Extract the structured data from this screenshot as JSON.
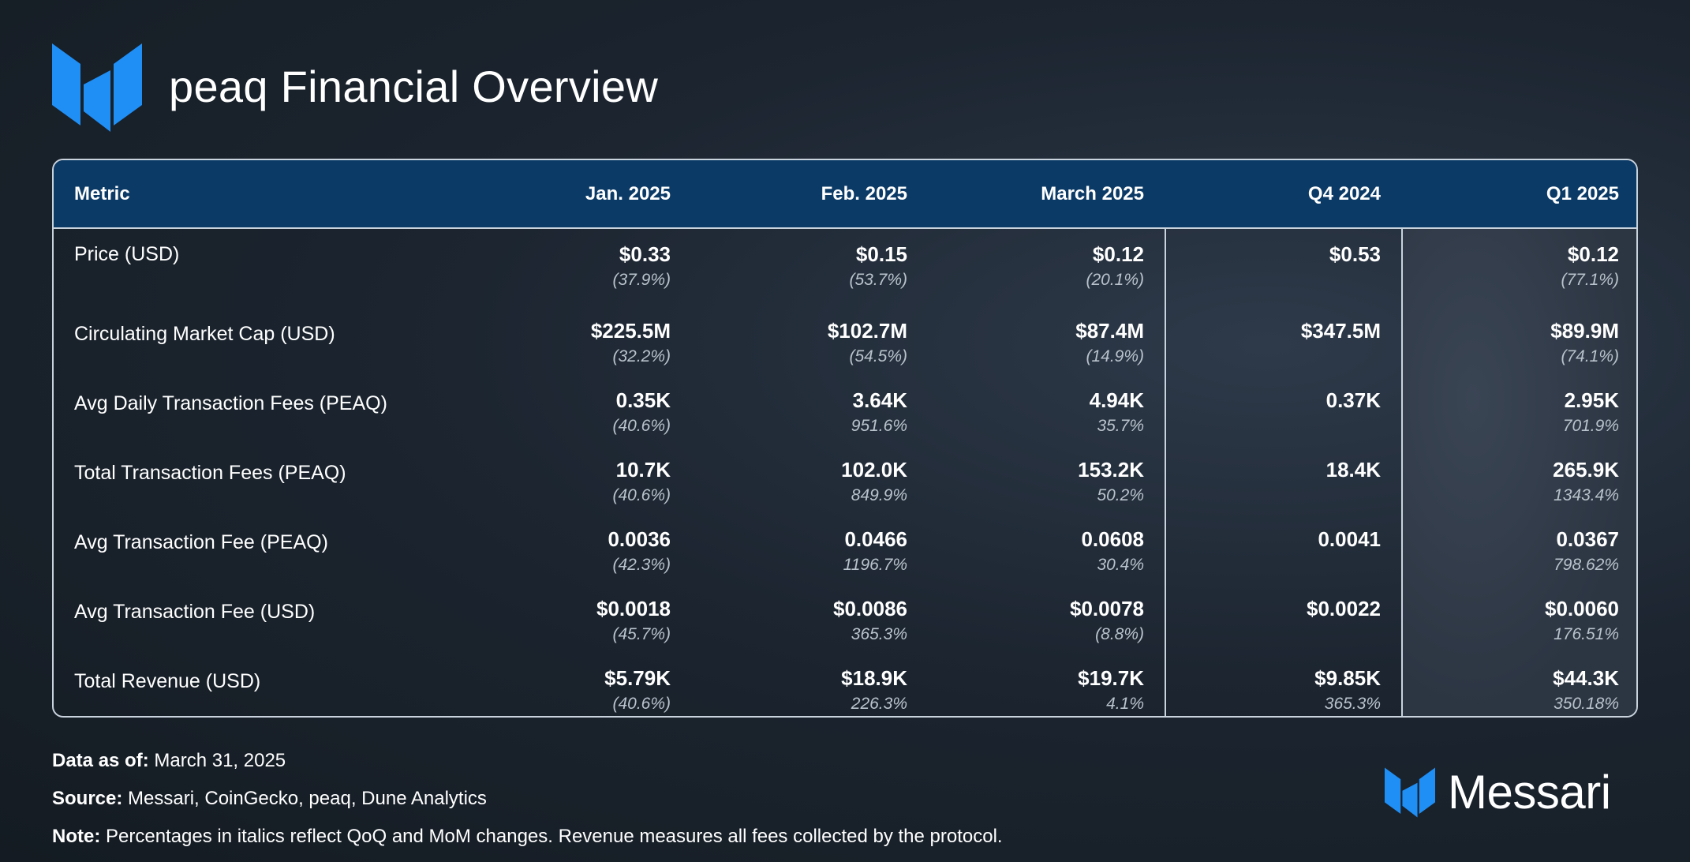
{
  "title": "peaq Financial Overview",
  "chart_data": {
    "type": "table",
    "columns": [
      "Metric",
      "Jan. 2025",
      "Feb. 2025",
      "March 2025",
      "Q4 2024",
      "Q1 2025"
    ],
    "rows": [
      {
        "metric": "Price (USD)",
        "cells": [
          {
            "value": "$0.33",
            "change": "(37.9%)"
          },
          {
            "value": "$0.15",
            "change": "(53.7%)"
          },
          {
            "value": "$0.12",
            "change": "(20.1%)"
          },
          {
            "value": "$0.53",
            "change": ""
          },
          {
            "value": "$0.12",
            "change": "(77.1%)"
          }
        ]
      },
      {
        "metric": "Circulating Market Cap (USD)",
        "cells": [
          {
            "value": "$225.5M",
            "change": "(32.2%)"
          },
          {
            "value": "$102.7M",
            "change": "(54.5%)"
          },
          {
            "value": "$87.4M",
            "change": "(14.9%)"
          },
          {
            "value": "$347.5M",
            "change": ""
          },
          {
            "value": "$89.9M",
            "change": "(74.1%)"
          }
        ]
      },
      {
        "metric": "Avg Daily Transaction Fees (PEAQ)",
        "cells": [
          {
            "value": "0.35K",
            "change": "(40.6%)"
          },
          {
            "value": "3.64K",
            "change": "951.6%"
          },
          {
            "value": "4.94K",
            "change": "35.7%"
          },
          {
            "value": "0.37K",
            "change": ""
          },
          {
            "value": "2.95K",
            "change": "701.9%"
          }
        ]
      },
      {
        "metric": "Total Transaction Fees (PEAQ)",
        "cells": [
          {
            "value": "10.7K",
            "change": "(40.6%)"
          },
          {
            "value": "102.0K",
            "change": "849.9%"
          },
          {
            "value": "153.2K",
            "change": "50.2%"
          },
          {
            "value": "18.4K",
            "change": ""
          },
          {
            "value": "265.9K",
            "change": "1343.4%"
          }
        ]
      },
      {
        "metric": "Avg Transaction Fee (PEAQ)",
        "cells": [
          {
            "value": "0.0036",
            "change": "(42.3%)"
          },
          {
            "value": "0.0466",
            "change": "1196.7%"
          },
          {
            "value": "0.0608",
            "change": "30.4%"
          },
          {
            "value": "0.0041",
            "change": ""
          },
          {
            "value": "0.0367",
            "change": "798.62%"
          }
        ]
      },
      {
        "metric": "Avg Transaction Fee (USD)",
        "cells": [
          {
            "value": "$0.0018",
            "change": "(45.7%)"
          },
          {
            "value": "$0.0086",
            "change": "365.3%"
          },
          {
            "value": "$0.0078",
            "change": "(8.8%)"
          },
          {
            "value": "$0.0022",
            "change": ""
          },
          {
            "value": "$0.0060",
            "change": "176.51%"
          }
        ]
      },
      {
        "metric": "Total Revenue (USD)",
        "cells": [
          {
            "value": "$5.79K",
            "change": "(40.6%)"
          },
          {
            "value": "$18.9K",
            "change": "226.3%"
          },
          {
            "value": "$19.7K",
            "change": "4.1%"
          },
          {
            "value": "$9.85K",
            "change": "365.3%"
          },
          {
            "value": "$44.3K",
            "change": "350.18%"
          }
        ]
      }
    ]
  },
  "footer": {
    "data_as_of_label": "Data as of:",
    "data_as_of": " March 31, 2025",
    "source_label": "Source:",
    "source": " Messari, CoinGecko, peaq, Dune Analytics",
    "note_label": "Note:",
    "note": " Percentages in italics reflect QoQ and MoM changes. Revenue measures all fees collected by the protocol."
  },
  "brand": {
    "name": "Messari",
    "icon": "messari-logo-icon"
  },
  "colors": {
    "header_bg": "#0b3a66",
    "logo_blue": "#1f8ff5",
    "change_text": "#b9c3cd",
    "border": "#c9d3de"
  }
}
